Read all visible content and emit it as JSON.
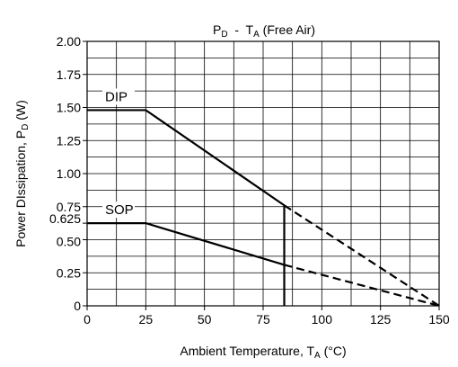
{
  "chart_data": {
    "type": "line",
    "title": {
      "p": "P",
      "p_sub": "D",
      "mid": "  -  T",
      "t_sub": "A",
      "rest": " (Free Air)"
    },
    "xlabel": {
      "main": "Ambient Temperature, T",
      "sub": "A",
      "rest": " (°C)"
    },
    "ylabel": {
      "main": "Power DIssipation, P",
      "sub": "D",
      "rest": " (W)"
    },
    "xlim": [
      0,
      150
    ],
    "ylim": [
      0,
      2.0
    ],
    "grid": true,
    "x_ticks": [
      0,
      25,
      50,
      75,
      100,
      125,
      150
    ],
    "x_tick_labels": [
      "0",
      "25",
      "50",
      "75",
      "100",
      "125",
      "150"
    ],
    "y_tick_values": [
      0,
      0.25,
      0.5,
      0.625,
      0.75,
      1.0,
      1.25,
      1.5,
      1.75,
      2.0
    ],
    "y_tick_labels": [
      "0",
      "0.25",
      "0.50",
      "0.625",
      "0.75",
      "1.00",
      "1.25",
      "1.50",
      "1.75",
      "2.00"
    ],
    "series": [
      {
        "name": "DIP",
        "solid": {
          "x": [
            0,
            25,
            84
          ],
          "y": [
            1.48,
            1.48,
            0.76
          ]
        },
        "dashed": {
          "x": [
            84,
            150
          ],
          "y": [
            0.76,
            0
          ]
        }
      },
      {
        "name": "SOP",
        "solid": {
          "x": [
            0,
            25,
            84
          ],
          "y": [
            0.625,
            0.625,
            0.31
          ]
        },
        "dashed": {
          "x": [
            84,
            150
          ],
          "y": [
            0.31,
            0
          ]
        }
      }
    ],
    "vline": {
      "x": 84,
      "y_from": 0,
      "y_to": 0.76
    }
  }
}
